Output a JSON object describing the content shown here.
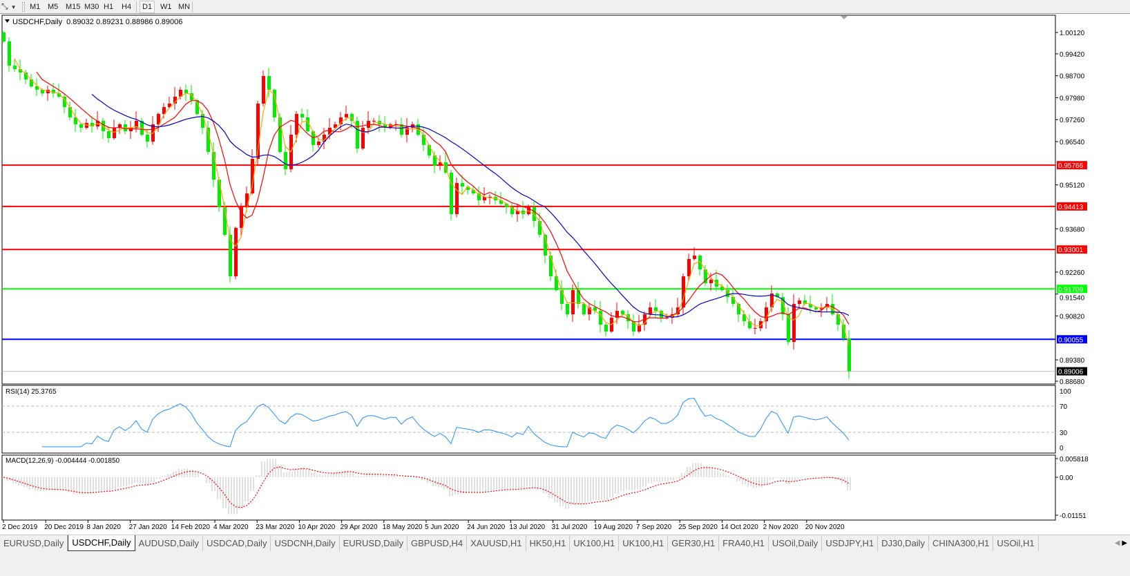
{
  "toolbar": {
    "tool_icon": "line-tool-icon",
    "timeframes": [
      {
        "label": "M1",
        "active": false
      },
      {
        "label": "M5",
        "active": false
      },
      {
        "label": "M15",
        "active": false
      },
      {
        "label": "M30",
        "active": false
      },
      {
        "label": "H1",
        "active": false
      },
      {
        "label": "H4",
        "active": false
      },
      {
        "label": "D1",
        "active": true
      },
      {
        "label": "W1",
        "active": false
      },
      {
        "label": "MN",
        "active": false
      }
    ]
  },
  "chart_header": {
    "symbol": "USDCHF,Daily",
    "ohlc": "0.89032 0.89231 0.88986 0.89006"
  },
  "rsi_header": "RSI(14) 25.3765",
  "macd_header": "MACD(12,26,9) -0.004444 -0.001850",
  "colors": {
    "bull_candle": "#ff0000",
    "bear_candle": "#00ee00",
    "ma_fast": "#ffa500",
    "ma_mid": "#ff0000",
    "ma_slow": "#0000cc",
    "rsi_line": "#1e90ff",
    "macd_hist": "#c0c0c0",
    "macd_signal": "#ff0000"
  },
  "chart_data": {
    "type": "candlestick",
    "symbol": "USDCHF",
    "timeframe": "Daily",
    "ylim": [
      0.8868,
      1.0012
    ],
    "price_ticks": [
      "1.00120",
      "0.99420",
      "0.98700",
      "0.97980",
      "0.97260",
      "0.96540",
      "0.95120",
      "0.93680",
      "0.92260",
      "0.91540",
      "0.90820",
      "0.89380",
      "0.88680"
    ],
    "date_labels": [
      "2 Dec 2019",
      "20 Dec 2019",
      "8 Jan 2020",
      "27 Jan 2020",
      "14 Feb 2020",
      "4 Mar 2020",
      "23 Mar 2020",
      "10 Apr 2020",
      "29 Apr 2020",
      "18 May 2020",
      "5 Jun 2020",
      "24 Jun 2020",
      "13 Jul 2020",
      "31 Jul 2020",
      "19 Aug 2020",
      "7 Sep 2020",
      "25 Sep 2020",
      "14 Oct 2020",
      "2 Nov 2020",
      "20 Nov 2020"
    ],
    "closes": [
      0.99825,
      0.99032,
      0.98919,
      0.98806,
      0.98579,
      0.98353,
      0.98239,
      0.98126,
      0.98239,
      0.98126,
      0.98013,
      0.97673,
      0.97333,
      0.97106,
      0.96993,
      0.97152,
      0.97038,
      0.9722,
      0.9688,
      0.96653,
      0.96993,
      0.97106,
      0.9688,
      0.96993,
      0.9722,
      0.96766,
      0.9654,
      0.97106,
      0.97446,
      0.97673,
      0.97786,
      0.98013,
      0.98239,
      0.98126,
      0.97899,
      0.97446,
      0.96993,
      0.962,
      0.95293,
      0.94387,
      0.93481,
      0.92121,
      0.93707,
      0.94387,
      0.9484,
      0.95973,
      0.97786,
      0.98692,
      0.98239,
      0.97333,
      0.962,
      0.95633,
      0.96766,
      0.97446,
      0.97333,
      0.9688,
      0.96426,
      0.9654,
      0.96766,
      0.96993,
      0.97106,
      0.97333,
      0.97446,
      0.9722,
      0.96313,
      0.96993,
      0.9722,
      0.9722,
      0.97106,
      0.96993,
      0.97106,
      0.97106,
      0.96766,
      0.96993,
      0.97106,
      0.96766,
      0.96426,
      0.96087,
      0.95747,
      0.9586,
      0.9552,
      0.9416,
      0.9518,
      0.95067,
      0.94954,
      0.9484,
      0.94614,
      0.94727,
      0.94727,
      0.94614,
      0.945,
      0.94387,
      0.9416,
      0.94274,
      0.9416,
      0.94387,
      0.93934,
      0.93481,
      0.92801,
      0.92121,
      0.91668,
      0.91215,
      0.90875,
      0.91668,
      0.91215,
      0.90875,
      0.91101,
      0.90988,
      0.90535,
      0.90308,
      0.90761,
      0.90988,
      0.90875,
      0.90648,
      0.90308,
      0.90535,
      0.90875,
      0.91101,
      0.90988,
      0.90761,
      0.90761,
      0.90875,
      0.91101,
      0.92121,
      0.92688,
      0.92801,
      0.92348,
      0.91894,
      0.92008,
      0.91781,
      0.91668,
      0.91441,
      0.91215,
      0.90875,
      0.90648,
      0.90421,
      0.90421,
      0.90648,
      0.91101,
      0.91555,
      0.91441,
      0.90875,
      0.89968,
      0.91215,
      0.91328,
      0.91215,
      0.91101,
      0.91033,
      0.91101,
      0.91215,
      0.90875,
      0.90535,
      0.90081,
      0.89006
    ],
    "horizontal_levels": [
      {
        "price": 0.95766,
        "label": "0.95766",
        "color": "#ff0000"
      },
      {
        "price": 0.94413,
        "label": "0.94413",
        "color": "#ff0000"
      },
      {
        "price": 0.93001,
        "label": "0.93001",
        "color": "#ff0000"
      },
      {
        "price": 0.91709,
        "label": "0.91709",
        "color": "#00ff00"
      },
      {
        "price": 0.90055,
        "label": "0.90055",
        "color": "#0000ff"
      }
    ],
    "current_price": {
      "price": 0.89006,
      "label": "0.89006"
    },
    "rsi": {
      "ticks": [
        "100",
        "70",
        "30",
        "0"
      ],
      "levels": [
        70,
        30
      ],
      "ylim": [
        0,
        100
      ]
    },
    "macd": {
      "ticks": [
        "0.005818",
        "0.00",
        "-0.01151"
      ],
      "ylim": [
        -0.01151,
        0.005818
      ]
    }
  },
  "tabs": [
    {
      "label": "EURUSD,Daily",
      "active": false
    },
    {
      "label": "USDCHF,Daily",
      "active": true
    },
    {
      "label": "AUDUSD,Daily",
      "active": false
    },
    {
      "label": "USDCAD,Daily",
      "active": false
    },
    {
      "label": "USDCNH,Daily",
      "active": false
    },
    {
      "label": "EURUSD,Daily",
      "active": false
    },
    {
      "label": "GBPUSD,H4",
      "active": false
    },
    {
      "label": "XAUUSD,H1",
      "active": false
    },
    {
      "label": "HK50,H1",
      "active": false
    },
    {
      "label": "UK100,H1",
      "active": false
    },
    {
      "label": "UK100,H1",
      "active": false
    },
    {
      "label": "GER30,H1",
      "active": false
    },
    {
      "label": "FRA40,H1",
      "active": false
    },
    {
      "label": "USOil,Daily",
      "active": false
    },
    {
      "label": "USDJPY,H1",
      "active": false
    },
    {
      "label": "DJ30,Daily",
      "active": false
    },
    {
      "label": "CHINA300,H1",
      "active": false
    },
    {
      "label": "USOil,H1",
      "active": false
    }
  ]
}
